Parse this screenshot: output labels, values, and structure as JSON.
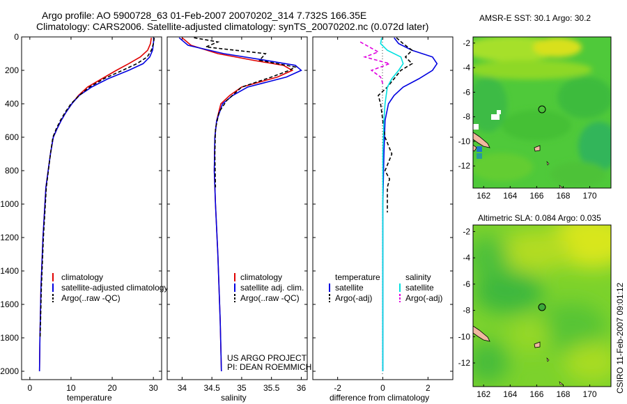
{
  "title_lines": [
    "Argo profile: AO 5900728_63 01-Feb-2007 20070202_314 7.732S 166.35E",
    "Climatology: CARS2006. Satellite-adjusted climatology: synTS_20070202.nc (0.072d later)"
  ],
  "vertical_label": "CSIRO 11-Feb-2007 09:01:12",
  "project_note": [
    "US ARGO PROJECT",
    "PI: DEAN ROEMMICH"
  ],
  "colors": {
    "red": "#e00000",
    "blue": "#0000e0",
    "black": "#000000",
    "cyan": "#00e0e0",
    "magenta": "#e000e0"
  },
  "chart_data": [
    {
      "type": "line",
      "name": "temperature-panel",
      "xlabel": "temperature",
      "xlim": [
        -2,
        32
      ],
      "xticks": [
        0,
        10,
        20,
        30
      ],
      "ylim": [
        2050,
        0
      ],
      "yticks": [
        0,
        200,
        400,
        600,
        800,
        1000,
        1200,
        1400,
        1600,
        1800,
        2000
      ],
      "legend": [
        "climatology",
        "satellite-adjusted climatology",
        "Argo(..raw -QC)"
      ],
      "series": [
        {
          "name": "climatology",
          "color": "red",
          "dash": false,
          "x": [
            29.5,
            29.3,
            28.6,
            26.8,
            24.0,
            21.0,
            17.5,
            14.0,
            11.8,
            10.2,
            8.8,
            7.6,
            6.6,
            5.7,
            5.0,
            3.9,
            3.2,
            2.7,
            2.45,
            2.35
          ],
          "y": [
            5,
            40,
            80,
            120,
            160,
            200,
            250,
            300,
            350,
            400,
            450,
            500,
            550,
            600,
            700,
            900,
            1200,
            1500,
            1800,
            2000
          ]
        },
        {
          "name": "satellite-adjusted climatology",
          "color": "blue",
          "dash": false,
          "x": [
            30.1,
            30.0,
            29.8,
            29.1,
            27.5,
            24.0,
            19.0,
            15.0,
            12.0,
            10.2,
            8.8,
            7.6,
            6.6,
            5.7,
            5.0,
            3.9,
            3.2,
            2.7,
            2.45,
            2.35
          ],
          "y": [
            5,
            40,
            80,
            120,
            160,
            200,
            250,
            300,
            350,
            400,
            450,
            500,
            550,
            600,
            700,
            900,
            1200,
            1500,
            1800,
            2000
          ]
        },
        {
          "name": "Argo(..raw -QC)",
          "color": "black",
          "dash": true,
          "x": [
            30.2,
            30.0,
            29.5,
            28.5,
            26.0,
            22.5,
            18.0,
            14.5,
            12.0,
            10.0,
            8.6,
            7.4,
            6.4,
            5.6,
            5.0,
            4.0,
            3.3,
            2.8,
            2.5
          ],
          "y": [
            5,
            40,
            80,
            120,
            160,
            200,
            250,
            300,
            350,
            400,
            450,
            500,
            550,
            600,
            700,
            900,
            1200,
            1500,
            1800
          ]
        }
      ]
    },
    {
      "type": "line",
      "name": "salinity-panel",
      "xlabel": "salinity",
      "xlim": [
        33.75,
        36.1
      ],
      "xticks": [
        34,
        34.5,
        35,
        35.5,
        36
      ],
      "ylim": [
        2050,
        0
      ],
      "legend": [
        "climatology",
        "satellite adj. clim.",
        "Argo(..raw -QC)"
      ],
      "series": [
        {
          "name": "climatology",
          "color": "red",
          "dash": false,
          "x": [
            34.0,
            34.15,
            34.6,
            35.2,
            35.7,
            35.85,
            35.6,
            35.0,
            34.8,
            34.65,
            34.58,
            34.55,
            34.54,
            34.56,
            34.6,
            34.64,
            34.66
          ],
          "y": [
            5,
            50,
            100,
            140,
            170,
            200,
            240,
            300,
            350,
            400,
            500,
            600,
            800,
            1000,
            1300,
            1700,
            2000
          ]
        },
        {
          "name": "satellite adj. clim.",
          "color": "blue",
          "dash": false,
          "x": [
            33.95,
            34.1,
            34.7,
            35.4,
            35.9,
            36.0,
            35.75,
            35.1,
            34.85,
            34.68,
            34.58,
            34.55,
            34.54,
            34.56,
            34.6,
            34.64,
            34.66
          ],
          "y": [
            5,
            50,
            100,
            140,
            170,
            200,
            240,
            300,
            350,
            400,
            500,
            600,
            800,
            1000,
            1300,
            1700,
            2000
          ]
        },
        {
          "name": "Argo(..raw -QC)",
          "color": "black",
          "dash": true,
          "x": [
            34.2,
            34.6,
            34.4,
            35.4,
            35.3,
            35.9,
            35.8,
            35.5,
            35.0,
            34.75,
            34.62,
            34.56,
            34.55,
            34.56
          ],
          "y": [
            5,
            30,
            60,
            100,
            140,
            180,
            200,
            240,
            300,
            380,
            450,
            550,
            700,
            900
          ]
        }
      ]
    },
    {
      "type": "line",
      "name": "difference-panel",
      "xlabel": "difference from climatology",
      "xlim": [
        -3.1,
        3.1
      ],
      "xticks": [
        -2,
        0,
        2
      ],
      "ylim": [
        2050,
        0
      ],
      "legend_headers": [
        "temperature",
        "salinity"
      ],
      "legend": [
        "satellite",
        "Argo(-adj)",
        "satellite",
        "Argo(-adj)"
      ],
      "series": [
        {
          "name": "satellite",
          "color": "blue",
          "dash": false,
          "x": [
            0.5,
            0.7,
            1.3,
            2.2,
            2.4,
            2.2,
            1.6,
            0.9,
            0.5,
            0.25,
            0.1,
            0.05,
            0.0,
            0.0
          ],
          "y": [
            5,
            40,
            80,
            120,
            160,
            200,
            250,
            300,
            350,
            400,
            500,
            700,
            1000,
            2000
          ]
        },
        {
          "name": "Argo(-adj)",
          "color": "black",
          "dash": true,
          "x": [
            0.6,
            0.9,
            1.3,
            1.0,
            1.3,
            0.8,
            0.5,
            0.2,
            -0.2,
            -0.1,
            0.0,
            0.1,
            0.4,
            0.1,
            0.3,
            0.2,
            0.2
          ],
          "y": [
            5,
            40,
            80,
            120,
            160,
            200,
            250,
            300,
            350,
            400,
            500,
            600,
            700,
            800,
            850,
            900,
            1050
          ]
        },
        {
          "name": "satellite",
          "color": "cyan",
          "dash": false,
          "x": [
            -0.05,
            -0.1,
            0.2,
            0.8,
            0.9,
            0.7,
            0.4,
            0.2,
            0.1,
            0.05,
            0.0,
            0.0
          ],
          "y": [
            5,
            40,
            80,
            120,
            160,
            200,
            250,
            300,
            400,
            500,
            700,
            2000
          ]
        },
        {
          "name": "Argo(-adj)",
          "color": "magenta",
          "dash": true,
          "x": [
            -1.0,
            -0.6,
            -0.2,
            -0.8,
            0.3,
            -0.5,
            -0.1,
            0.0
          ],
          "y": [
            30,
            60,
            90,
            120,
            160,
            200,
            240,
            280
          ]
        }
      ]
    },
    {
      "type": "heatmap",
      "name": "amsr-sst-map",
      "title": "AMSR-E SST: 30.1  Argo: 30.2",
      "xlim": [
        161.2,
        171.6
      ],
      "ylim": [
        -13.8,
        -1.5
      ],
      "xticks": [
        162,
        164,
        166,
        168,
        170
      ],
      "yticks": [
        -2,
        -4,
        -6,
        -8,
        -10,
        -12
      ],
      "marker": {
        "lon": 166.35,
        "lat": -7.732
      }
    },
    {
      "type": "heatmap",
      "name": "altimetric-sla-map",
      "title": "Altimetric SLA: 0.084  Argo: 0.035",
      "xlim": [
        161.2,
        171.6
      ],
      "ylim": [
        -13.8,
        -1.5
      ],
      "xticks": [
        162,
        164,
        166,
        168,
        170
      ],
      "yticks": [
        -2,
        -4,
        -6,
        -8,
        -10,
        -12
      ],
      "marker": {
        "lon": 166.35,
        "lat": -7.732
      }
    }
  ]
}
